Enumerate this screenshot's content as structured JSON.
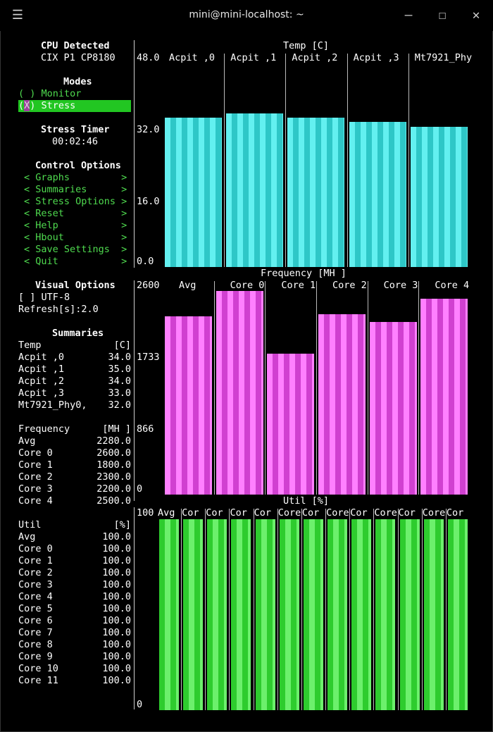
{
  "window": {
    "title": "mini@mini-localhost: ~"
  },
  "sidebar": {
    "cpu_heading": "CPU Detected",
    "cpu_name": "CIX P1 CP8180",
    "modes_heading": "Modes",
    "mode_monitor": "( ) Monitor",
    "mode_stress_x": "X",
    "mode_stress_rest": ") Stress",
    "stress_timer_heading": "Stress Timer",
    "stress_timer_value": "00:02:46",
    "control_heading": "Control Options",
    "control_items": [
      "< Graphs         >",
      "< Summaries      >",
      "< Stress Options >",
      "< Reset          >",
      "< Help           >",
      "< Hbout          >",
      "< Save Settings  >",
      "< Quit           >"
    ],
    "visual_heading": "Visual Options",
    "utf8": "[ ] UTF-8",
    "refresh": "Refresh[s]:2.0",
    "summaries_heading": "Summaries",
    "temp_rows": [
      [
        "Temp",
        "[C]"
      ],
      [
        "Acpit ,0",
        "34.0"
      ],
      [
        "Acpit ,1",
        "35.0"
      ],
      [
        "Acpit ,2",
        "34.0"
      ],
      [
        "Acpit ,3",
        "33.0"
      ],
      [
        "Mt7921_Phy0,",
        "32.0"
      ]
    ],
    "freq_rows": [
      [
        "Frequency",
        "[MH ]"
      ],
      [
        "Avg",
        "2280.0"
      ],
      [
        "Core 0",
        "2600.0"
      ],
      [
        "Core 1",
        "1800.0"
      ],
      [
        "Core 2",
        "2300.0"
      ],
      [
        "Core 3",
        "2200.0"
      ],
      [
        "Core 4",
        "2500.0"
      ]
    ],
    "util_rows": [
      [
        "Util",
        "[%]"
      ],
      [
        "Avg",
        "100.0"
      ],
      [
        "Core 0",
        "100.0"
      ],
      [
        "Core 1",
        "100.0"
      ],
      [
        "Core 2",
        "100.0"
      ],
      [
        "Core 3",
        "100.0"
      ],
      [
        "Core 4",
        "100.0"
      ],
      [
        "Core 5",
        "100.0"
      ],
      [
        "Core 6",
        "100.0"
      ],
      [
        "Core 7",
        "100.0"
      ],
      [
        "Core 8",
        "100.0"
      ],
      [
        "Core 9",
        "100.0"
      ],
      [
        "Core 10",
        "100.0"
      ],
      [
        "Core 11",
        "100.0"
      ]
    ]
  },
  "graphs": {
    "temp": {
      "title": "Temp [C]",
      "ticks": [
        "48.0",
        "32.0",
        "16.0",
        "0.0"
      ],
      "max": 48.0,
      "columns": [
        "Acpit ,0",
        "Acpit ,1",
        "Acpit ,2",
        "Acpit ,3",
        "Mt7921_Phy"
      ],
      "values": [
        34.0,
        35.0,
        34.0,
        33.0,
        32.0
      ]
    },
    "freq": {
      "title": "Frequency [MH ]",
      "ticks": [
        "2600",
        "1733",
        "866",
        "0"
      ],
      "max": 2600,
      "columns": [
        "Avg",
        "Core 0",
        "Core 1",
        "Core 2",
        "Core 3",
        "Core 4"
      ],
      "values": [
        2280.0,
        2600.0,
        1800.0,
        2300.0,
        2200.0,
        2500.0
      ]
    },
    "util": {
      "title": "Util [%]",
      "ticks": [
        "100",
        "0"
      ],
      "max": 100,
      "columns": [
        "Avg",
        "Cor",
        "Cor",
        "Cor",
        "Cor",
        "Core",
        "Cor",
        "Core",
        "Cor",
        "Core",
        "Cor",
        "Core",
        "Cor"
      ],
      "values": [
        100,
        100,
        100,
        100,
        100,
        100,
        100,
        100,
        100,
        100,
        100,
        100,
        100
      ]
    }
  },
  "colors": {
    "temp": "#4fe8e8",
    "freq": "#e860e8",
    "util": "#3ad83a",
    "selection": "#22c622"
  }
}
